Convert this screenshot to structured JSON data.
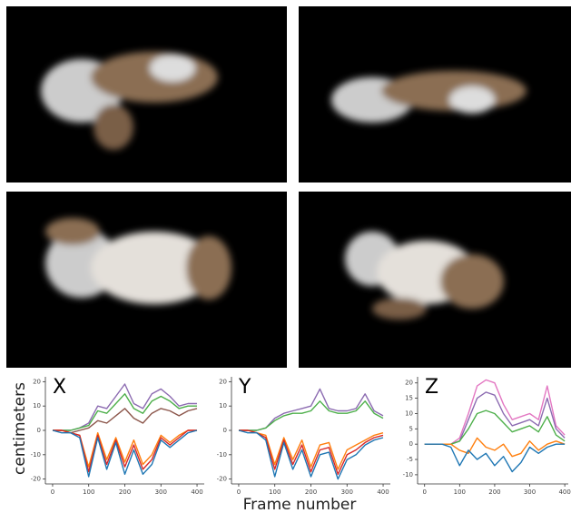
{
  "figure": {
    "xlabel": "Frame number",
    "ylabel": "centimeters"
  },
  "chart_data": [
    {
      "type": "line",
      "title": "X",
      "x": [
        0,
        25,
        50,
        75,
        100,
        125,
        150,
        175,
        200,
        225,
        250,
        275,
        300,
        325,
        350,
        375,
        400
      ],
      "xlim": [
        -20,
        420
      ],
      "xticks": [
        0,
        100,
        200,
        300,
        400
      ],
      "ylim": [
        -22,
        22
      ],
      "yticks": [
        -20,
        -10,
        0,
        10,
        20
      ],
      "series": [
        {
          "color": "#8c6bb1",
          "values": [
            0,
            0,
            0,
            1,
            3,
            10,
            9,
            14,
            19,
            11,
            9,
            15,
            17,
            14,
            10,
            11,
            11
          ]
        },
        {
          "color": "#4daf4a",
          "values": [
            0,
            0,
            0,
            1,
            2,
            8,
            7,
            11,
            15,
            9,
            7,
            12,
            14,
            12,
            9,
            10,
            10
          ]
        },
        {
          "color": "#8c564b",
          "values": [
            0,
            0,
            -1,
            0,
            1,
            4,
            3,
            6,
            9,
            5,
            3,
            7,
            9,
            8,
            6,
            8,
            9
          ]
        },
        {
          "color": "#ff7f0e",
          "values": [
            0,
            0,
            -1,
            -2,
            -15,
            -1,
            -12,
            -3,
            -13,
            -4,
            -14,
            -10,
            -2,
            -5,
            -2,
            0,
            0
          ]
        },
        {
          "color": "#d62728",
          "values": [
            0,
            0,
            -1,
            -2,
            -17,
            -2,
            -14,
            -4,
            -15,
            -6,
            -16,
            -12,
            -3,
            -6,
            -3,
            0,
            0
          ]
        },
        {
          "color": "#1f77b4",
          "values": [
            0,
            -1,
            -1,
            -3,
            -19,
            -3,
            -16,
            -5,
            -18,
            -8,
            -18,
            -14,
            -4,
            -7,
            -4,
            -1,
            0
          ]
        }
      ]
    },
    {
      "type": "line",
      "title": "Y",
      "x": [
        0,
        25,
        50,
        75,
        100,
        125,
        150,
        175,
        200,
        225,
        250,
        275,
        300,
        325,
        350,
        375,
        400
      ],
      "xlim": [
        -20,
        420
      ],
      "xticks": [
        0,
        100,
        200,
        300,
        400
      ],
      "ylim": [
        -22,
        22
      ],
      "yticks": [
        -20,
        -10,
        0,
        10,
        20
      ],
      "series": [
        {
          "color": "#8c6bb1",
          "values": [
            0,
            0,
            0,
            1,
            5,
            7,
            8,
            9,
            10,
            17,
            9,
            8,
            8,
            9,
            15,
            8,
            6
          ]
        },
        {
          "color": "#4daf4a",
          "values": [
            0,
            0,
            0,
            1,
            4,
            6,
            7,
            7,
            8,
            12,
            8,
            7,
            7,
            8,
            12,
            7,
            5
          ]
        },
        {
          "color": "#ff7f0e",
          "values": [
            0,
            0,
            -1,
            -2,
            -14,
            -3,
            -12,
            -4,
            -15,
            -6,
            -5,
            -16,
            -8,
            -6,
            -4,
            -2,
            -1
          ]
        },
        {
          "color": "#d62728",
          "values": [
            0,
            0,
            -1,
            -3,
            -16,
            -4,
            -14,
            -6,
            -17,
            -8,
            -7,
            -18,
            -10,
            -8,
            -5,
            -3,
            -2
          ]
        },
        {
          "color": "#1f77b4",
          "values": [
            0,
            -1,
            -1,
            -4,
            -19,
            -5,
            -16,
            -8,
            -19,
            -10,
            -9,
            -20,
            -12,
            -10,
            -6,
            -4,
            -3
          ]
        }
      ]
    },
    {
      "type": "line",
      "title": "Z",
      "x": [
        0,
        25,
        50,
        75,
        100,
        125,
        150,
        175,
        200,
        225,
        250,
        275,
        300,
        325,
        350,
        375,
        400
      ],
      "xlim": [
        -20,
        410
      ],
      "xticks": [
        0,
        100,
        200,
        300,
        400
      ],
      "ylim": [
        -13,
        22
      ],
      "yticks": [
        -10,
        -5,
        0,
        5,
        10,
        15,
        20
      ],
      "series": [
        {
          "color": "#e377c2",
          "values": [
            0,
            0,
            0,
            0,
            2,
            10,
            19,
            21,
            20,
            13,
            8,
            9,
            10,
            8,
            19,
            6,
            3
          ]
        },
        {
          "color": "#8c6bb1",
          "values": [
            0,
            0,
            0,
            0,
            1,
            8,
            15,
            17,
            16,
            10,
            6,
            7,
            8,
            6,
            15,
            5,
            2
          ]
        },
        {
          "color": "#4daf4a",
          "values": [
            0,
            0,
            0,
            0,
            1,
            5,
            10,
            11,
            10,
            7,
            4,
            5,
            6,
            4,
            9,
            3,
            1
          ]
        },
        {
          "color": "#ff7f0e",
          "values": [
            0,
            0,
            0,
            0,
            -2,
            -3,
            2,
            -1,
            -2,
            0,
            -4,
            -3,
            1,
            -2,
            0,
            1,
            0
          ]
        },
        {
          "color": "#1f77b4",
          "values": [
            0,
            0,
            0,
            -1,
            -7,
            -2,
            -5,
            -3,
            -7,
            -4,
            -9,
            -6,
            -1,
            -3,
            -1,
            0,
            0
          ]
        }
      ]
    }
  ]
}
